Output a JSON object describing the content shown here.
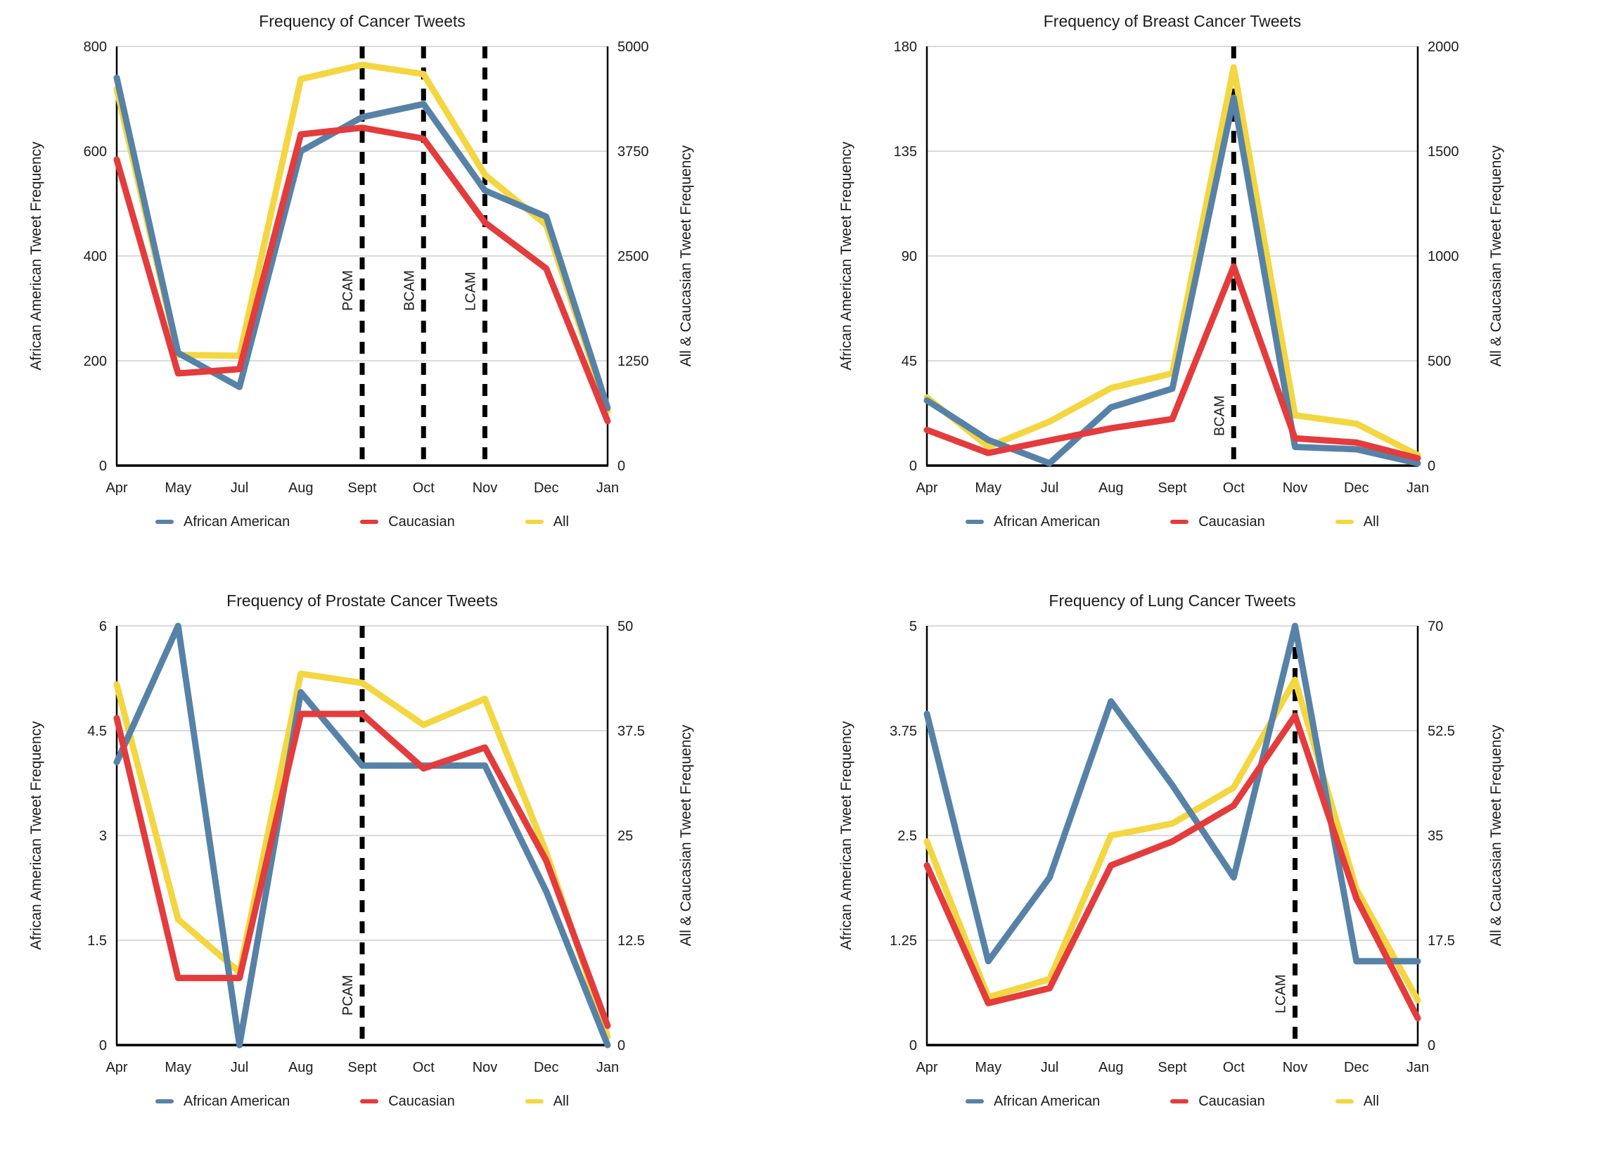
{
  "months": [
    "Apr",
    "May",
    "Jul",
    "Aug",
    "Sept",
    "Oct",
    "Nov",
    "Dec",
    "Jan"
  ],
  "colors": {
    "african_american": "#5782a8",
    "caucasian": "#e43b3c",
    "all": "#f3d640",
    "event_line": "#000000",
    "grid": "#dadada",
    "axis": "#000000"
  },
  "legend": {
    "items": [
      {
        "label": "African American",
        "color_key": "african_american"
      },
      {
        "label": "Caucasian",
        "color_key": "caucasian"
      },
      {
        "label": "All",
        "color_key": "all"
      }
    ]
  },
  "layout_hints": {
    "series_draw_order": [
      2,
      0,
      1
    ],
    "line_width": 9,
    "event_dash": "17 13",
    "event_line_width": 7,
    "grid_on": true,
    "legend_position": "bottom"
  },
  "chart_data": [
    {
      "type": "line",
      "title": "Frequency of Cancer Tweets",
      "categories": [
        "Apr",
        "May",
        "Jul",
        "Aug",
        "Sept",
        "Oct",
        "Nov",
        "Dec",
        "Jan"
      ],
      "left_axis": {
        "label": "African American Tweet Frequency",
        "min": 0,
        "max": 800,
        "ticks": [
          0,
          200,
          400,
          600,
          800
        ]
      },
      "right_axis": {
        "label": "All & Caucasian Tweet Frequency",
        "min": 0,
        "max": 5000,
        "ticks": [
          0,
          1250,
          2500,
          3750,
          5000
        ]
      },
      "events": [
        {
          "label": "PCAM",
          "month_index": 4,
          "label_gap": 220
        },
        {
          "label": "BCAM",
          "month_index": 5,
          "label_gap": 220
        },
        {
          "label": "LCAM",
          "month_index": 6,
          "label_gap": 220
        }
      ],
      "series": [
        {
          "name": "African American",
          "axis": "left",
          "color_key": "african_american",
          "values": [
            740,
            215,
            150,
            600,
            665,
            690,
            525,
            475,
            110
          ]
        },
        {
          "name": "Caucasian",
          "axis": "right",
          "color_key": "caucasian",
          "values": [
            3650,
            1100,
            1150,
            3950,
            4030,
            3900,
            2900,
            2350,
            530
          ]
        },
        {
          "name": "All",
          "axis": "right",
          "color_key": "all",
          "values": [
            4490,
            1320,
            1310,
            4610,
            4780,
            4670,
            3470,
            2870,
            650
          ]
        }
      ]
    },
    {
      "type": "line",
      "title": "Frequency of Breast Cancer Tweets",
      "categories": [
        "Apr",
        "May",
        "Jul",
        "Aug",
        "Sept",
        "Oct",
        "Nov",
        "Dec",
        "Jan"
      ],
      "left_axis": {
        "label": "African American Tweet Frequency",
        "min": 0,
        "max": 180,
        "ticks": [
          0,
          45,
          90,
          135,
          180
        ]
      },
      "right_axis": {
        "label": "All & Caucasian Tweet Frequency",
        "min": 0,
        "max": 2000,
        "ticks": [
          0,
          500,
          1000,
          1500,
          2000
        ]
      },
      "events": [
        {
          "label": "BCAM",
          "month_index": 5,
          "label_gap": 42
        }
      ],
      "series": [
        {
          "name": "African American",
          "axis": "left",
          "color_key": "african_american",
          "values": [
            28,
            11,
            1,
            25,
            33,
            158,
            8,
            7,
            1
          ]
        },
        {
          "name": "Caucasian",
          "axis": "right",
          "color_key": "caucasian",
          "values": [
            170,
            60,
            120,
            178,
            222,
            950,
            130,
            110,
            35
          ]
        },
        {
          "name": "All",
          "axis": "right",
          "color_key": "all",
          "values": [
            325,
            90,
            210,
            370,
            440,
            1900,
            240,
            200,
            50
          ]
        }
      ]
    },
    {
      "type": "line",
      "title": "Frequency of Prostate Cancer Tweets",
      "categories": [
        "Apr",
        "May",
        "Jul",
        "Aug",
        "Sept",
        "Oct",
        "Nov",
        "Dec",
        "Jan"
      ],
      "left_axis": {
        "label": "African American Tweet Frequency",
        "min": 0,
        "max": 6,
        "ticks": [
          0,
          1.5,
          3,
          4.5,
          6
        ]
      },
      "right_axis": {
        "label": "All & Caucasian Tweet Frequency",
        "min": 0,
        "max": 50,
        "ticks": [
          0,
          12.5,
          25,
          37.5,
          50
        ]
      },
      "events": [
        {
          "label": "PCAM",
          "month_index": 4,
          "label_gap": 42
        }
      ],
      "series": [
        {
          "name": "African American",
          "axis": "left",
          "color_key": "african_american",
          "values": [
            4.05,
            6,
            0,
            5.05,
            4,
            4,
            4,
            2.2,
            0
          ]
        },
        {
          "name": "Caucasian",
          "axis": "right",
          "color_key": "caucasian",
          "values": [
            39,
            8,
            8,
            39.5,
            39.5,
            33,
            35.5,
            22,
            2.3
          ]
        },
        {
          "name": "All",
          "axis": "right",
          "color_key": "all",
          "values": [
            43,
            15,
            8.7,
            44.3,
            43.2,
            38.2,
            41.3,
            23,
            1
          ]
        }
      ]
    },
    {
      "type": "line",
      "title": "Frequency of Lung Cancer Tweets",
      "categories": [
        "Apr",
        "May",
        "Jul",
        "Aug",
        "Sept",
        "Oct",
        "Nov",
        "Dec",
        "Jan"
      ],
      "left_axis": {
        "label": "African American Tweet Frequency",
        "min": 0,
        "max": 5,
        "ticks": [
          0,
          1.25,
          2.5,
          3.75,
          5
        ]
      },
      "right_axis": {
        "label": "All & Caucasian Tweet Frequency",
        "min": 0,
        "max": 70,
        "ticks": [
          0,
          17.5,
          35,
          52.5,
          70
        ]
      },
      "events": [
        {
          "label": "LCAM",
          "month_index": 6,
          "label_gap": 45
        }
      ],
      "series": [
        {
          "name": "African American",
          "axis": "left",
          "color_key": "african_american",
          "values": [
            3.95,
            1,
            2,
            4.1,
            3.1,
            2,
            5,
            1,
            1
          ]
        },
        {
          "name": "Caucasian",
          "axis": "right",
          "color_key": "caucasian",
          "values": [
            30,
            7,
            9.5,
            30,
            34,
            40,
            55,
            24.5,
            4.5
          ]
        },
        {
          "name": "All",
          "axis": "right",
          "color_key": "all",
          "values": [
            34,
            8,
            11,
            35,
            37,
            43,
            61,
            26,
            7.5
          ]
        }
      ]
    }
  ]
}
